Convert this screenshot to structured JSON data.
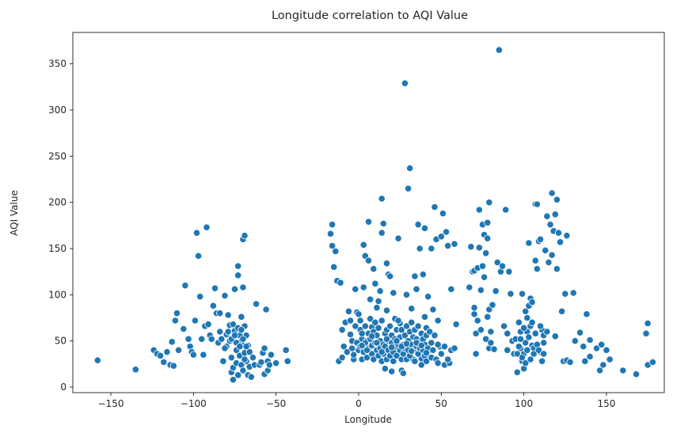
{
  "chart_data": {
    "type": "scatter",
    "title": "Longitude correlation to AQI Value",
    "xlabel": "Longitude",
    "ylabel": "AQI Value",
    "xlim": [
      -173,
      185
    ],
    "ylim": [
      -6,
      384
    ],
    "xticks": [
      -150,
      -100,
      -50,
      0,
      50,
      100,
      150
    ],
    "yticks": [
      0,
      50,
      100,
      150,
      200,
      250,
      300,
      350
    ],
    "grid": false,
    "legend": "none",
    "marker_color": "#1f77b4",
    "points": [
      [
        -158,
        29
      ],
      [
        -135,
        19
      ],
      [
        -124,
        40
      ],
      [
        -122,
        36
      ],
      [
        -120,
        34
      ],
      [
        -118,
        27
      ],
      [
        -116,
        38
      ],
      [
        -114,
        24
      ],
      [
        -112,
        23
      ],
      [
        -113,
        49
      ],
      [
        -111,
        72
      ],
      [
        -110,
        80
      ],
      [
        -109,
        40
      ],
      [
        -106,
        63
      ],
      [
        -105,
        110
      ],
      [
        -103,
        52
      ],
      [
        -102,
        44
      ],
      [
        -101,
        38
      ],
      [
        -100,
        35
      ],
      [
        -99,
        72
      ],
      [
        -98,
        167
      ],
      [
        -97,
        142
      ],
      [
        -96,
        98
      ],
      [
        -95,
        52
      ],
      [
        -94,
        35
      ],
      [
        -93,
        66
      ],
      [
        -92,
        173
      ],
      [
        -91,
        68
      ],
      [
        -90,
        56
      ],
      [
        -89,
        52
      ],
      [
        -88,
        88
      ],
      [
        -87,
        107
      ],
      [
        -86,
        80
      ],
      [
        -85,
        48
      ],
      [
        -84,
        60
      ],
      [
        -84,
        80
      ],
      [
        -83,
        52
      ],
      [
        -82,
        28
      ],
      [
        -81,
        99
      ],
      [
        -80,
        57
      ],
      [
        -80,
        44
      ],
      [
        -79,
        78
      ],
      [
        -78,
        67
      ],
      [
        -78,
        50
      ],
      [
        -77,
        32
      ],
      [
        -77,
        16
      ],
      [
        -76,
        8
      ],
      [
        -76,
        21
      ],
      [
        -75,
        106
      ],
      [
        -75,
        61
      ],
      [
        -74,
        40
      ],
      [
        -74,
        26
      ],
      [
        -73,
        13
      ],
      [
        -73,
        121
      ],
      [
        -73,
        131
      ],
      [
        -72,
        56
      ],
      [
        -72,
        34
      ],
      [
        -71,
        76
      ],
      [
        -71,
        50
      ],
      [
        -71,
        24
      ],
      [
        -70,
        160
      ],
      [
        -70,
        108
      ],
      [
        -70,
        45
      ],
      [
        -70,
        18
      ],
      [
        -69,
        164
      ],
      [
        -69,
        66
      ],
      [
        -69,
        37
      ],
      [
        -68,
        28
      ],
      [
        -68,
        56
      ],
      [
        -67,
        13
      ],
      [
        -67,
        45
      ],
      [
        -66,
        22
      ],
      [
        -65,
        11
      ],
      [
        -64,
        32
      ],
      [
        -63,
        24
      ],
      [
        -62,
        90
      ],
      [
        -60,
        24
      ],
      [
        -59,
        27
      ],
      [
        -58,
        37
      ],
      [
        -57,
        14
      ],
      [
        -57,
        42
      ],
      [
        -56,
        84
      ],
      [
        -55,
        18
      ],
      [
        -55,
        28
      ],
      [
        -54,
        24
      ],
      [
        -53,
        35
      ],
      [
        -50,
        26
      ],
      [
        -44,
        40
      ],
      [
        -43,
        28
      ],
      [
        -81,
        42
      ],
      [
        -79,
        60
      ],
      [
        -77,
        52
      ],
      [
        -76,
        68
      ],
      [
        -75,
        56
      ],
      [
        -74,
        48
      ],
      [
        -73,
        64
      ],
      [
        -72,
        44
      ],
      [
        -71,
        62
      ],
      [
        -70,
        52
      ],
      [
        -69,
        30
      ],
      [
        -68,
        44
      ],
      [
        -66,
        38
      ],
      [
        -17,
        166
      ],
      [
        -16,
        176
      ],
      [
        -16,
        153
      ],
      [
        -15,
        130
      ],
      [
        -14,
        147
      ],
      [
        -13,
        115
      ],
      [
        -12,
        28
      ],
      [
        -11,
        113
      ],
      [
        -10,
        62
      ],
      [
        -10,
        32
      ],
      [
        -9,
        44
      ],
      [
        -8,
        70
      ],
      [
        -7,
        38
      ],
      [
        -6,
        82
      ],
      [
        -5,
        57
      ],
      [
        -4,
        42
      ],
      [
        -3,
        30
      ],
      [
        -2,
        106
      ],
      [
        -1,
        81
      ],
      [
        0,
        79
      ],
      [
        1,
        62
      ],
      [
        2,
        52
      ],
      [
        2,
        30
      ],
      [
        3,
        108
      ],
      [
        3,
        154
      ],
      [
        4,
        142
      ],
      [
        5,
        50
      ],
      [
        6,
        179
      ],
      [
        6,
        137
      ],
      [
        7,
        95
      ],
      [
        8,
        65
      ],
      [
        9,
        128
      ],
      [
        10,
        112
      ],
      [
        11,
        86
      ],
      [
        12,
        93
      ],
      [
        13,
        104
      ],
      [
        14,
        167
      ],
      [
        14,
        204
      ],
      [
        15,
        177
      ],
      [
        16,
        20
      ],
      [
        17,
        134
      ],
      [
        17,
        83
      ],
      [
        18,
        122
      ],
      [
        19,
        120
      ],
      [
        20,
        17
      ],
      [
        21,
        102
      ],
      [
        22,
        74
      ],
      [
        24,
        161
      ],
      [
        25,
        69
      ],
      [
        26,
        18
      ],
      [
        27,
        15
      ],
      [
        28,
        329
      ],
      [
        29,
        100
      ],
      [
        30,
        215
      ],
      [
        31,
        237
      ],
      [
        32,
        85
      ],
      [
        33,
        30
      ],
      [
        34,
        120
      ],
      [
        35,
        106
      ],
      [
        36,
        176
      ],
      [
        37,
        150
      ],
      [
        38,
        31
      ],
      [
        39,
        122
      ],
      [
        40,
        172
      ],
      [
        40,
        76
      ],
      [
        41,
        64
      ],
      [
        42,
        98
      ],
      [
        43,
        40
      ],
      [
        44,
        150
      ],
      [
        45,
        84
      ],
      [
        46,
        195
      ],
      [
        47,
        160
      ],
      [
        48,
        72
      ],
      [
        49,
        44
      ],
      [
        50,
        163
      ],
      [
        51,
        188
      ],
      [
        52,
        24
      ],
      [
        53,
        168
      ],
      [
        54,
        153
      ],
      [
        55,
        26
      ],
      [
        56,
        106
      ],
      [
        58,
        155
      ],
      [
        59,
        68
      ],
      [
        -5,
        72
      ],
      [
        -4,
        50
      ],
      [
        -3,
        35
      ],
      [
        -2,
        66
      ],
      [
        -1,
        48
      ],
      [
        0,
        40
      ],
      [
        1,
        72
      ],
      [
        1,
        44
      ],
      [
        2,
        58
      ],
      [
        3,
        38
      ],
      [
        4,
        66
      ],
      [
        4,
        48
      ],
      [
        5,
        32
      ],
      [
        6,
        58
      ],
      [
        6,
        42
      ],
      [
        7,
        74
      ],
      [
        7,
        52
      ],
      [
        8,
        36
      ],
      [
        8,
        45
      ],
      [
        9,
        60
      ],
      [
        9,
        30
      ],
      [
        10,
        48
      ],
      [
        10,
        70
      ],
      [
        11,
        40
      ],
      [
        11,
        56
      ],
      [
        12,
        34
      ],
      [
        12,
        64
      ],
      [
        13,
        50
      ],
      [
        13,
        42
      ],
      [
        14,
        28
      ],
      [
        14,
        72
      ],
      [
        15,
        46
      ],
      [
        15,
        36
      ],
      [
        16,
        58
      ],
      [
        16,
        44
      ],
      [
        17,
        30
      ],
      [
        17,
        62
      ],
      [
        18,
        50
      ],
      [
        18,
        40
      ],
      [
        19,
        66
      ],
      [
        19,
        34
      ],
      [
        20,
        48
      ],
      [
        20,
        56
      ],
      [
        21,
        38
      ],
      [
        21,
        28
      ],
      [
        22,
        52
      ],
      [
        22,
        44
      ],
      [
        23,
        62
      ],
      [
        23,
        34
      ],
      [
        24,
        46
      ],
      [
        24,
        72
      ],
      [
        25,
        40
      ],
      [
        25,
        54
      ],
      [
        26,
        30
      ],
      [
        26,
        62
      ],
      [
        27,
        46
      ],
      [
        27,
        36
      ],
      [
        28,
        56
      ],
      [
        28,
        42
      ],
      [
        29,
        66
      ],
      [
        29,
        30
      ],
      [
        30,
        50
      ],
      [
        30,
        40
      ],
      [
        31,
        60
      ],
      [
        31,
        34
      ],
      [
        32,
        46
      ],
      [
        32,
        70
      ],
      [
        33,
        54
      ],
      [
        33,
        40
      ],
      [
        34,
        28
      ],
      [
        34,
        62
      ],
      [
        35,
        44
      ],
      [
        35,
        52
      ],
      [
        36,
        36
      ],
      [
        36,
        66
      ],
      [
        37,
        48
      ],
      [
        37,
        42
      ],
      [
        38,
        58
      ],
      [
        38,
        24
      ],
      [
        39,
        40
      ],
      [
        39,
        52
      ],
      [
        40,
        34
      ],
      [
        40,
        46
      ],
      [
        41,
        56
      ],
      [
        41,
        28
      ],
      [
        42,
        42
      ],
      [
        43,
        60
      ],
      [
        44,
        48
      ],
      [
        44,
        32
      ],
      [
        45,
        40
      ],
      [
        46,
        56
      ],
      [
        47,
        30
      ],
      [
        48,
        46
      ],
      [
        48,
        26
      ],
      [
        50,
        36
      ],
      [
        52,
        44
      ],
      [
        54,
        30
      ],
      [
        56,
        40
      ],
      [
        58,
        42
      ],
      [
        2,
        45
      ],
      [
        5,
        40
      ],
      [
        8,
        55
      ],
      [
        11,
        48
      ],
      [
        14,
        38
      ],
      [
        17,
        52
      ],
      [
        20,
        43
      ],
      [
        23,
        50
      ],
      [
        26,
        44
      ],
      [
        29,
        47
      ],
      [
        32,
        39
      ],
      [
        35,
        48
      ],
      [
        38,
        45
      ],
      [
        41,
        37
      ],
      [
        67,
        108
      ],
      [
        68,
        152
      ],
      [
        69,
        125
      ],
      [
        70,
        126
      ],
      [
        70,
        79
      ],
      [
        70,
        86
      ],
      [
        71,
        58
      ],
      [
        71,
        36
      ],
      [
        72,
        72
      ],
      [
        72,
        129
      ],
      [
        73,
        192
      ],
      [
        73,
        151
      ],
      [
        74,
        105
      ],
      [
        74,
        62
      ],
      [
        75,
        131
      ],
      [
        75,
        176
      ],
      [
        76,
        165
      ],
      [
        76,
        119
      ],
      [
        77,
        52
      ],
      [
        77,
        145
      ],
      [
        78,
        76
      ],
      [
        78,
        178
      ],
      [
        78,
        161
      ],
      [
        79,
        200
      ],
      [
        79,
        84
      ],
      [
        79,
        42
      ],
      [
        80,
        60
      ],
      [
        80,
        48
      ],
      [
        81,
        89
      ],
      [
        82,
        41
      ],
      [
        83,
        104
      ],
      [
        84,
        135
      ],
      [
        85,
        365
      ],
      [
        86,
        125
      ],
      [
        87,
        131
      ],
      [
        88,
        66
      ],
      [
        89,
        192
      ],
      [
        90,
        58
      ],
      [
        90,
        40
      ],
      [
        91,
        125
      ],
      [
        92,
        101
      ],
      [
        93,
        50
      ],
      [
        94,
        36
      ],
      [
        95,
        52
      ],
      [
        96,
        16
      ],
      [
        97,
        70
      ],
      [
        98,
        60
      ],
      [
        98,
        42
      ],
      [
        99,
        28
      ],
      [
        99,
        101
      ],
      [
        100,
        36
      ],
      [
        100,
        20
      ],
      [
        101,
        48
      ],
      [
        101,
        82
      ],
      [
        102,
        75
      ],
      [
        102,
        60
      ],
      [
        103,
        88
      ],
      [
        103,
        156
      ],
      [
        104,
        96
      ],
      [
        104,
        66
      ],
      [
        105,
        92
      ],
      [
        105,
        45
      ],
      [
        106,
        42
      ],
      [
        107,
        198
      ],
      [
        107,
        137
      ],
      [
        108,
        198
      ],
      [
        108,
        128
      ],
      [
        109,
        158
      ],
      [
        110,
        160
      ],
      [
        110,
        38
      ],
      [
        111,
        62
      ],
      [
        111,
        28
      ],
      [
        112,
        56
      ],
      [
        112,
        48
      ],
      [
        113,
        148
      ],
      [
        114,
        185
      ],
      [
        115,
        135
      ],
      [
        116,
        176
      ],
      [
        117,
        210
      ],
      [
        117,
        143
      ],
      [
        118,
        169
      ],
      [
        119,
        187
      ],
      [
        119,
        55
      ],
      [
        120,
        128
      ],
      [
        120,
        203
      ],
      [
        121,
        167
      ],
      [
        122,
        157
      ],
      [
        123,
        82
      ],
      [
        124,
        28
      ],
      [
        125,
        101
      ],
      [
        126,
        164
      ],
      [
        126,
        29
      ],
      [
        128,
        27
      ],
      [
        130,
        102
      ],
      [
        131,
        50
      ],
      [
        134,
        59
      ],
      [
        136,
        44
      ],
      [
        137,
        28
      ],
      [
        138,
        79
      ],
      [
        140,
        51
      ],
      [
        140,
        33
      ],
      [
        144,
        42
      ],
      [
        146,
        18
      ],
      [
        147,
        46
      ],
      [
        148,
        24
      ],
      [
        150,
        40
      ],
      [
        152,
        30
      ],
      [
        160,
        18
      ],
      [
        168,
        14
      ],
      [
        174,
        58
      ],
      [
        175,
        69
      ],
      [
        175,
        24
      ],
      [
        178,
        27
      ],
      [
        96,
        36
      ],
      [
        97,
        44
      ],
      [
        98,
        52
      ],
      [
        99,
        32
      ],
      [
        100,
        64
      ],
      [
        101,
        26
      ],
      [
        102,
        40
      ],
      [
        103,
        54
      ],
      [
        104,
        30
      ],
      [
        105,
        70
      ],
      [
        106,
        36
      ],
      [
        107,
        58
      ],
      [
        108,
        46
      ],
      [
        109,
        40
      ],
      [
        110,
        66
      ],
      [
        112,
        36
      ],
      [
        114,
        60
      ]
    ]
  }
}
